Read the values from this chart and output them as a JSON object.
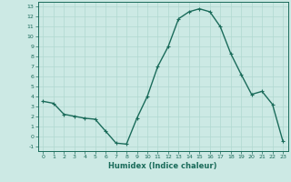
{
  "x": [
    0,
    1,
    2,
    3,
    4,
    5,
    6,
    7,
    8,
    9,
    10,
    11,
    12,
    13,
    14,
    15,
    16,
    17,
    18,
    19,
    20,
    21,
    22,
    23
  ],
  "y": [
    3.5,
    3.3,
    2.2,
    2.0,
    1.8,
    1.7,
    0.5,
    -0.7,
    -0.8,
    1.8,
    4.0,
    7.0,
    9.0,
    11.8,
    12.5,
    12.8,
    12.5,
    11.0,
    8.3,
    6.2,
    4.2,
    4.5,
    3.2,
    -0.5
  ],
  "line_color": "#1a6b5a",
  "marker": "+",
  "marker_size": 3,
  "marker_edge_width": 0.8,
  "xlim": [
    -0.5,
    23.5
  ],
  "ylim": [
    -1.5,
    13.5
  ],
  "yticks": [
    -1,
    0,
    1,
    2,
    3,
    4,
    5,
    6,
    7,
    8,
    9,
    10,
    11,
    12,
    13
  ],
  "xticks": [
    0,
    1,
    2,
    3,
    4,
    5,
    6,
    7,
    8,
    9,
    10,
    11,
    12,
    13,
    14,
    15,
    16,
    17,
    18,
    19,
    20,
    21,
    22,
    23
  ],
  "xlabel": "Humidex (Indice chaleur)",
  "bg_color": "#cce9e4",
  "grid_color": "#b0d8d0",
  "line_width": 1.0,
  "tick_fontsize": 4.5,
  "label_fontsize": 6.0,
  "spine_color": "#1a6b5a"
}
